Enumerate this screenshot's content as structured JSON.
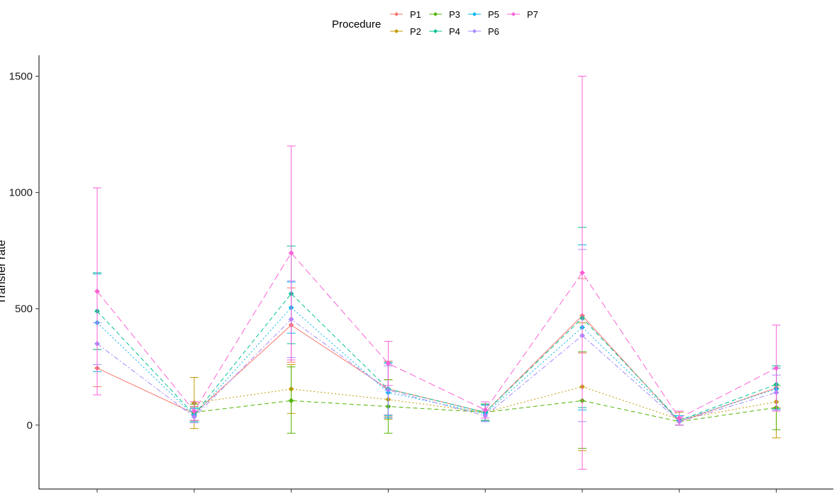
{
  "chart_data": {
    "type": "line",
    "title": "",
    "xlabel": "",
    "ylabel": "Transfer rate",
    "ylim": [
      -275,
      1590
    ],
    "yticks": [
      0,
      500,
      1000,
      1500
    ],
    "tick_labels": [
      "0",
      "500",
      "1000",
      "1500"
    ],
    "x_groups": 8,
    "grid": false,
    "legend": {
      "title": "Procedure",
      "placement": "top"
    },
    "series": [
      {
        "name": "P1",
        "color": "#F8766D",
        "dash": "solid",
        "values": [
          245,
          50,
          430,
          155,
          55,
          470,
          15,
          160
        ],
        "lower": [
          165,
          20,
          270,
          35,
          20,
          310,
          0,
          75
        ],
        "upper": [
          325,
          80,
          590,
          275,
          90,
          630,
          30,
          245
        ]
      },
      {
        "name": "P2",
        "color": "#C49A00",
        "dash": "dot",
        "values": [
          null,
          95,
          155,
          110,
          55,
          165,
          25,
          100
        ],
        "lower": [
          null,
          -15,
          50,
          25,
          20,
          -110,
          0,
          -55
        ],
        "upper": [
          null,
          205,
          260,
          195,
          90,
          440,
          55,
          255
        ]
      },
      {
        "name": "P3",
        "color": "#53B400",
        "dash": "dash",
        "values": [
          null,
          55,
          105,
          80,
          55,
          105,
          15,
          75
        ],
        "lower": [
          null,
          20,
          -35,
          -35,
          20,
          -100,
          0,
          -20
        ],
        "upper": [
          null,
          90,
          250,
          195,
          90,
          315,
          30,
          170
        ]
      },
      {
        "name": "P4",
        "color": "#00C094",
        "dash": "dash",
        "values": [
          490,
          45,
          565,
          155,
          55,
          460,
          20,
          175
        ],
        "lower": [
          325,
          15,
          350,
          40,
          20,
          75,
          0,
          70
        ],
        "upper": [
          655,
          75,
          770,
          270,
          90,
          850,
          40,
          255
        ]
      },
      {
        "name": "P5",
        "color": "#00B6EB",
        "dash": "dot",
        "values": [
          440,
          40,
          505,
          140,
          50,
          420,
          20,
          155
        ],
        "lower": [
          230,
          10,
          395,
          30,
          15,
          65,
          0,
          65
        ],
        "upper": [
          650,
          70,
          615,
          265,
          85,
          775,
          40,
          245
        ]
      },
      {
        "name": "P6",
        "color": "#A58AFF",
        "dash": "dashdot",
        "values": [
          350,
          35,
          455,
          150,
          40,
          385,
          15,
          140
        ],
        "lower": [
          260,
          10,
          290,
          45,
          15,
          15,
          0,
          65
        ],
        "upper": [
          440,
          60,
          620,
          255,
          65,
          755,
          30,
          215
        ]
      },
      {
        "name": "P7",
        "color": "#FB61D7",
        "dash": "longdash",
        "values": [
          575,
          60,
          740,
          265,
          65,
          655,
          30,
          245
        ],
        "lower": [
          130,
          20,
          280,
          170,
          30,
          -190,
          0,
          60
        ],
        "upper": [
          1020,
          100,
          1200,
          360,
          100,
          1500,
          60,
          430
        ]
      }
    ]
  }
}
